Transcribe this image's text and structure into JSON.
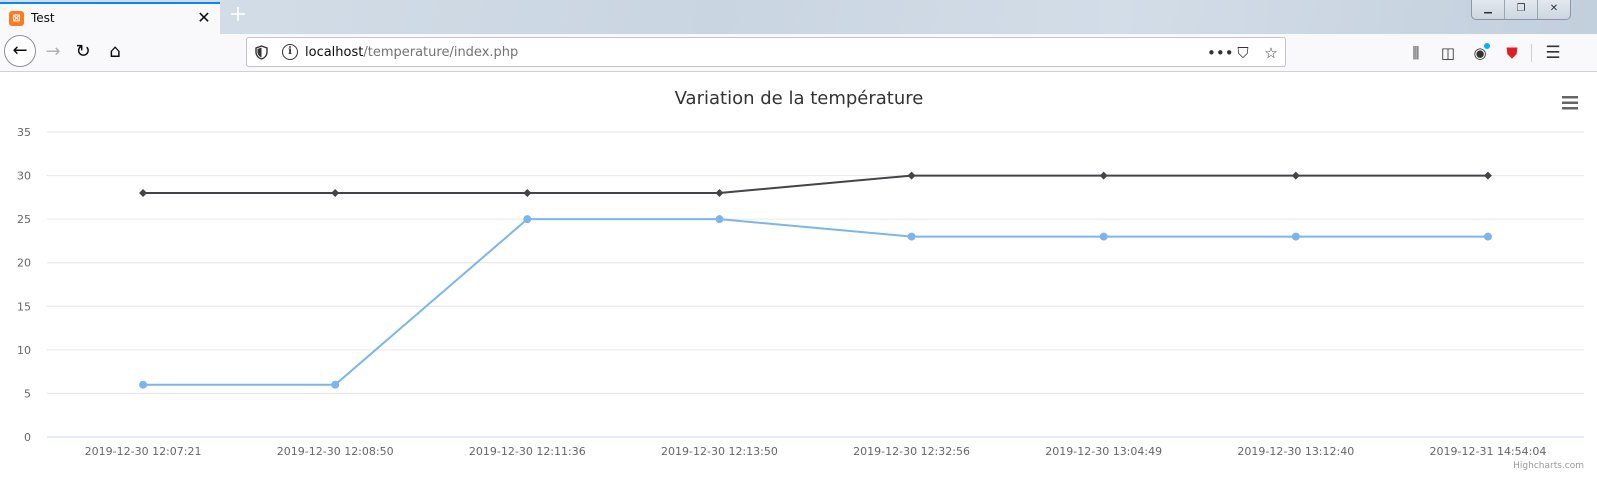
{
  "browser": {
    "tab_title": "Test",
    "tab_icon": "xampp-icon",
    "new_tab_symbol": "+",
    "url_host": "localhost",
    "url_path": "/temperature/index.php"
  },
  "chart_data": {
    "type": "line",
    "title": "Variation de la température",
    "xlabel": "",
    "ylabel": "",
    "ylim": [
      0,
      35
    ],
    "yticks": [
      0,
      5,
      10,
      15,
      20,
      25,
      30,
      35
    ],
    "categories": [
      "2019-12-30 12:07:21",
      "2019-12-30 12:08:50",
      "2019-12-30 12:11:36",
      "2019-12-30 12:13:50",
      "2019-12-30 12:32:56",
      "2019-12-30 13:04:49",
      "2019-12-30 13:12:40",
      "2019-12-31 14:54:04"
    ],
    "series": [
      {
        "color": "#434348",
        "marker": "diamond",
        "values": [
          28,
          28,
          28,
          28,
          30,
          30,
          30,
          30
        ]
      },
      {
        "color": "#7cb5ec",
        "marker": "circle",
        "values": [
          6,
          6,
          25,
          25,
          23,
          23,
          23,
          23
        ]
      }
    ],
    "grid": true,
    "credits": "Highcharts.com"
  }
}
